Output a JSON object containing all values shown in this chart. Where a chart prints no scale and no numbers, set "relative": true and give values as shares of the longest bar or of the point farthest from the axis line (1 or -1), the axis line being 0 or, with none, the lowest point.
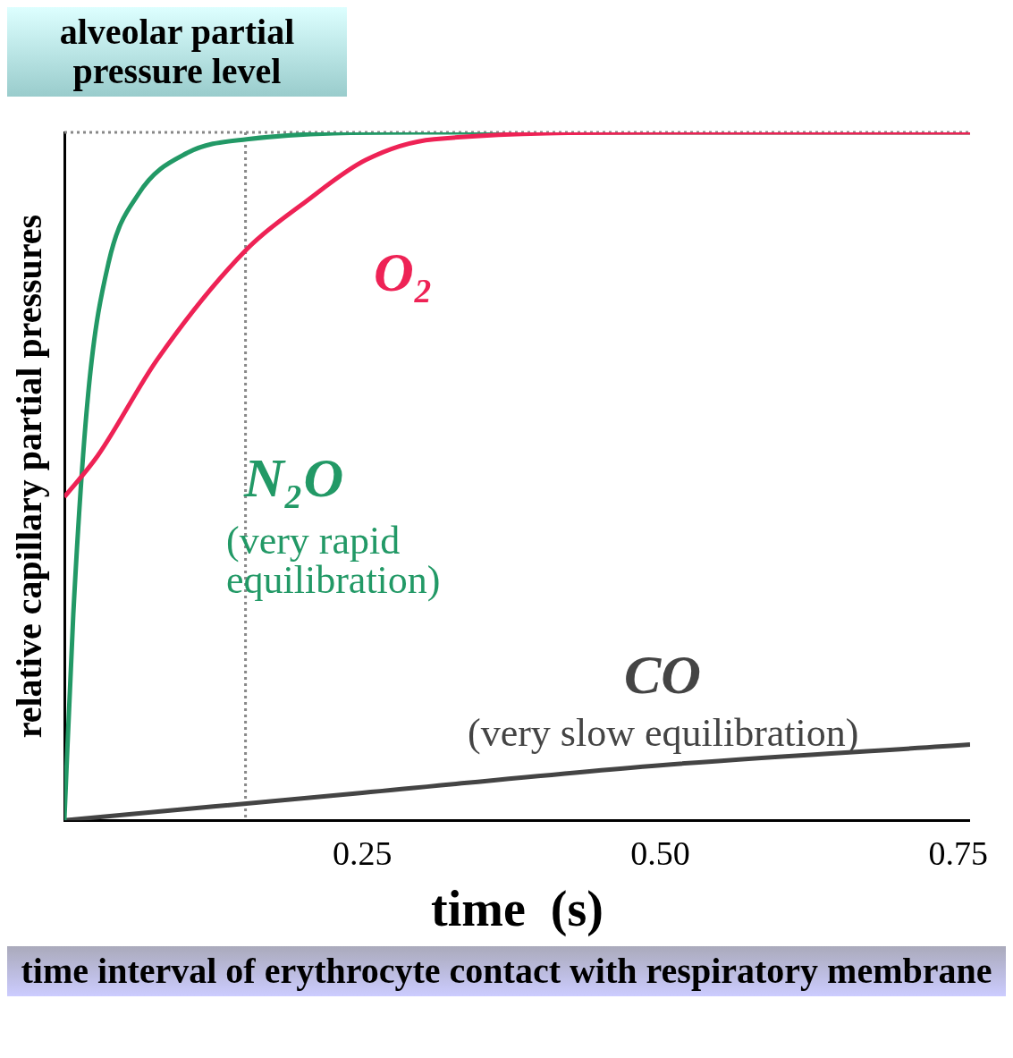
{
  "chart_data": {
    "type": "line",
    "relative": true,
    "xlabel": "time  (s)",
    "ylabel": "relative capillary partial pressures",
    "xlim": [
      0,
      0.76
    ],
    "xticks": [
      0.25,
      {
        "value": 0.5,
        "label": "0.50"
      },
      0.75
    ],
    "series": [
      {
        "name": "O₂",
        "color": "#ee2255",
        "x": [
          0,
          0.028,
          0.078,
          0.153,
          0.203,
          0.253,
          0.31,
          0.5,
          0.76
        ],
        "values": [
          0.47,
          0.53,
          0.67,
          0.83,
          0.9,
          0.96,
          0.99,
          1,
          1
        ]
      },
      {
        "name": "N₂O",
        "color": "#229966",
        "x": [
          0,
          0.0075,
          0.02,
          0.037,
          0.062,
          0.103,
          0.153,
          0.3,
          0.76
        ],
        "values": [
          0,
          0.3,
          0.62,
          0.81,
          0.91,
          0.97,
          0.99,
          1,
          1
        ]
      },
      {
        "name": "CO",
        "color": "#444444",
        "x": [
          0,
          0.125,
          0.25,
          0.5,
          0.76
        ],
        "values": [
          0,
          0.02,
          0.04,
          0.08,
          0.11
        ]
      }
    ],
    "ref_lines": [
      {
        "axis": "y",
        "value": 1,
        "color": "#888888",
        "line_style": "dotted"
      },
      {
        "axis": "x",
        "value": 0.152,
        "color": "#888888",
        "line_style": "dotted"
      }
    ],
    "annotations": [
      "alveolar partial pressure level",
      "(very rapid equilibration)",
      "(very slow equilibration)",
      "time interval of erythrocyte contact with respiratory membrane"
    ],
    "grid": false,
    "legend": false,
    "marker": "none",
    "line_style": "solid"
  }
}
